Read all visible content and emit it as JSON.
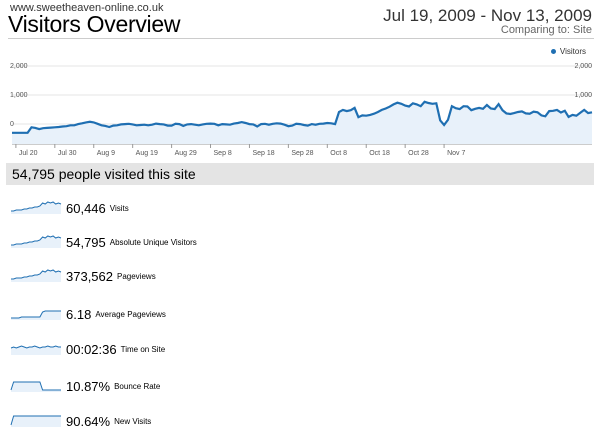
{
  "header": {
    "site": "www.sweetheaven-online.co.uk",
    "title": "Visitors Overview",
    "date_range": "Jul 19, 2009 - Nov 13, 2009",
    "comparing_label": "Comparing to:",
    "comparing_value": "Site"
  },
  "colors": {
    "series": "#1f6fb2",
    "fill": "#e8f1fa",
    "grid": "#e6e6e6"
  },
  "chart_data": {
    "type": "area",
    "legend": "Visitors",
    "legend_position": "top-right",
    "ylim": [
      0,
      2000
    ],
    "y_ticks_left": [
      "2,000",
      "1,000",
      "0"
    ],
    "y_ticks_right": [
      "2,000",
      "1,000"
    ],
    "x_tick_labels": [
      "Jul 20",
      "Jul 30",
      "Aug 9",
      "Aug 19",
      "Aug 29",
      "Sep 8",
      "Sep 18",
      "Sep 28",
      "Oct 8",
      "Oct 18",
      "Oct 28",
      "Nov 7"
    ],
    "grid": true,
    "values": [
      40,
      40,
      40,
      40,
      40,
      230,
      210,
      170,
      200,
      210,
      220,
      230,
      240,
      260,
      270,
      300,
      300,
      340,
      370,
      400,
      420,
      400,
      350,
      300,
      280,
      240,
      290,
      300,
      330,
      340,
      350,
      330,
      300,
      310,
      320,
      300,
      320,
      360,
      340,
      330,
      290,
      290,
      350,
      340,
      280,
      330,
      340,
      320,
      300,
      330,
      350,
      360,
      350,
      300,
      340,
      330,
      320,
      360,
      380,
      410,
      380,
      340,
      330,
      260,
      340,
      350,
      320,
      350,
      370,
      360,
      320,
      270,
      290,
      350,
      340,
      310,
      290,
      340,
      320,
      350,
      360,
      380,
      370,
      340,
      760,
      830,
      790,
      820,
      900,
      580,
      640,
      630,
      660,
      700,
      760,
      830,
      880,
      940,
      1020,
      1080,
      1040,
      980,
      950,
      1060,
      1020,
      960,
      1110,
      1070,
      1040,
      1060,
      470,
      310,
      490,
      960,
      890,
      860,
      960,
      950,
      820,
      870,
      900,
      870,
      1000,
      880,
      860,
      1030,
      820,
      710,
      690,
      720,
      760,
      780,
      710,
      700,
      770,
      750,
      640,
      610,
      790,
      800,
      830,
      740,
      800,
      590,
      660,
      630,
      730,
      830,
      720,
      750
    ]
  },
  "summary": {
    "headline": "54,795 people visited this site"
  },
  "metrics": [
    {
      "value": "60,446",
      "label": "Visits",
      "spark": [
        3,
        3,
        4,
        4,
        4,
        5,
        5,
        6,
        6,
        7,
        7,
        8,
        11,
        10,
        12,
        11,
        12,
        10,
        11,
        10
      ]
    },
    {
      "value": "54,795",
      "label": "Absolute Unique Visitors",
      "spark": [
        3,
        3,
        4,
        4,
        4,
        5,
        5,
        6,
        6,
        7,
        7,
        8,
        11,
        10,
        12,
        11,
        12,
        10,
        11,
        10
      ]
    },
    {
      "value": "373,562",
      "label": "Pageviews",
      "spark": [
        3,
        3,
        4,
        4,
        4,
        5,
        5,
        6,
        6,
        7,
        7,
        8,
        11,
        10,
        12,
        11,
        12,
        10,
        11,
        10
      ]
    },
    {
      "value": "6.18",
      "label": "Average Pageviews",
      "spark": [
        2,
        2,
        2,
        2,
        3,
        3,
        3,
        3,
        3,
        3,
        3,
        3,
        8,
        9,
        9,
        9,
        9,
        9,
        9,
        9
      ]
    },
    {
      "value": "00:02:36",
      "label": "Time on Site",
      "spark": [
        7,
        8,
        7,
        8,
        9,
        8,
        7,
        8,
        8,
        9,
        8,
        7,
        8,
        8,
        9,
        8,
        8,
        9,
        8,
        8
      ]
    },
    {
      "value": "10.87%",
      "label": "Bounce Rate",
      "spark": [
        2,
        10,
        10,
        10,
        10,
        10,
        10,
        10,
        10,
        10,
        10,
        10,
        2,
        2,
        2,
        2,
        2,
        2,
        2,
        2
      ]
    },
    {
      "value": "90.64%",
      "label": "New Visits",
      "spark": [
        2,
        11,
        11,
        11,
        11,
        11,
        11,
        11,
        11,
        11,
        11,
        11,
        11,
        11,
        11,
        11,
        11,
        11,
        11,
        11
      ]
    }
  ]
}
